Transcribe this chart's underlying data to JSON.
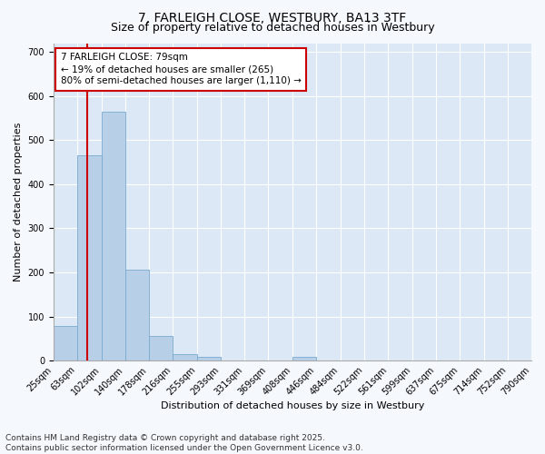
{
  "title_line1": "7, FARLEIGH CLOSE, WESTBURY, BA13 3TF",
  "title_line2": "Size of property relative to detached houses in Westbury",
  "xlabel": "Distribution of detached houses by size in Westbury",
  "ylabel": "Number of detached properties",
  "bar_color": "#b8cfe8",
  "bar_edge_color": "#7aaad0",
  "background_color": "#dce8f5",
  "grid_color": "#ffffff",
  "bin_edges": [
    25,
    63,
    102,
    140,
    178,
    216,
    255,
    293,
    331,
    369,
    408,
    446,
    484,
    522,
    561,
    599,
    637,
    675,
    714,
    752,
    790
  ],
  "bin_labels": [
    "25sqm",
    "63sqm",
    "102sqm",
    "140sqm",
    "178sqm",
    "216sqm",
    "255sqm",
    "293sqm",
    "331sqm",
    "369sqm",
    "408sqm",
    "446sqm",
    "484sqm",
    "522sqm",
    "561sqm",
    "599sqm",
    "637sqm",
    "675sqm",
    "714sqm",
    "752sqm",
    "790sqm"
  ],
  "counts": [
    78,
    465,
    565,
    207,
    55,
    14,
    8,
    0,
    0,
    0,
    8,
    0,
    0,
    0,
    0,
    0,
    0,
    0,
    0,
    0
  ],
  "ylim": [
    0,
    720
  ],
  "yticks": [
    0,
    100,
    200,
    300,
    400,
    500,
    600,
    700
  ],
  "property_size": 79,
  "red_line_color": "#cc0000",
  "annotation_text": "7 FARLEIGH CLOSE: 79sqm\n← 19% of detached houses are smaller (265)\n80% of semi-detached houses are larger (1,110) →",
  "annotation_edge_color": "#cc0000",
  "footer_line1": "Contains HM Land Registry data © Crown copyright and database right 2025.",
  "footer_line2": "Contains public sector information licensed under the Open Government Licence v3.0.",
  "title_fontsize": 10,
  "subtitle_fontsize": 9,
  "axis_label_fontsize": 8,
  "tick_fontsize": 7,
  "annotation_fontsize": 7.5,
  "footer_fontsize": 6.5
}
